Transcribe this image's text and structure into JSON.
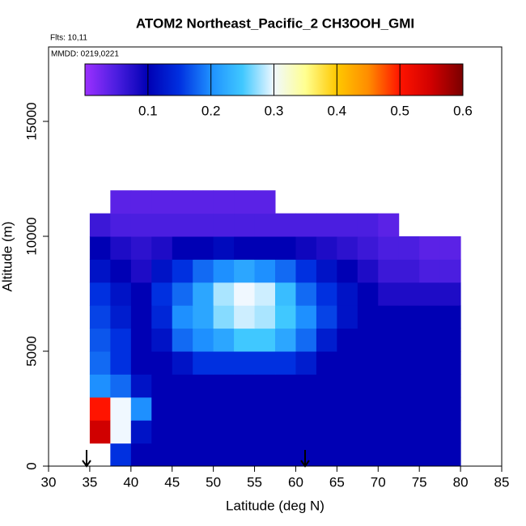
{
  "chart_data": {
    "type": "heatmap",
    "title": "ATOM2 Northeast_Pacific_2 CH3OOH_GMI",
    "annotations": [
      "Flts: 10,11",
      "MMDD: 0219,0221"
    ],
    "x_label": "Latitude (deg N)",
    "y_label": "Altitude (m)",
    "xlim": [
      30,
      85
    ],
    "xticks": [
      30,
      35,
      40,
      45,
      50,
      55,
      60,
      65,
      70,
      75,
      80,
      85
    ],
    "ylim": [
      0,
      18240
    ],
    "yticks": [
      0,
      5000,
      10000,
      15000
    ],
    "x_bins": [
      35,
      37.5,
      40,
      42.5,
      45,
      47.5,
      50,
      52.5,
      55,
      57.5,
      60,
      62.5,
      65,
      67.5,
      70,
      72.5,
      75,
      77.5,
      80
    ],
    "y_bins": [
      0,
      1000,
      2000,
      3000,
      4000,
      5000,
      6000,
      7000,
      8000,
      9000,
      10000,
      11000,
      12000
    ],
    "values": [
      [
        null,
        0.15,
        0.1,
        0.1,
        0.1,
        0.1,
        0.1,
        0.1,
        0.1,
        0.1,
        0.1,
        0.1,
        0.1,
        0.1,
        0.1,
        0.1,
        0.1,
        0.1
      ],
      [
        0.55,
        0.3,
        0.12,
        0.1,
        0.1,
        0.1,
        0.1,
        0.1,
        0.1,
        0.1,
        0.1,
        0.1,
        0.1,
        0.1,
        0.1,
        0.1,
        0.1,
        0.1
      ],
      [
        0.5,
        0.3,
        0.2,
        0.1,
        0.1,
        0.1,
        0.1,
        0.1,
        0.1,
        0.1,
        0.1,
        0.1,
        0.1,
        0.1,
        0.1,
        0.1,
        0.1,
        0.1
      ],
      [
        0.2,
        0.18,
        0.12,
        0.1,
        0.1,
        0.1,
        0.1,
        0.1,
        0.1,
        0.1,
        0.1,
        0.1,
        0.1,
        0.1,
        0.1,
        0.1,
        0.1,
        0.1
      ],
      [
        0.18,
        0.15,
        0.1,
        0.1,
        0.12,
        0.15,
        0.15,
        0.15,
        0.15,
        0.15,
        0.13,
        0.1,
        0.1,
        0.1,
        0.1,
        0.1,
        0.1,
        0.1
      ],
      [
        0.17,
        0.15,
        0.1,
        0.12,
        0.18,
        0.2,
        0.22,
        0.25,
        0.25,
        0.22,
        0.18,
        0.13,
        0.1,
        0.1,
        0.1,
        0.1,
        0.1,
        0.1
      ],
      [
        0.16,
        0.13,
        0.1,
        0.14,
        0.2,
        0.22,
        0.27,
        0.29,
        0.28,
        0.25,
        0.2,
        0.16,
        0.12,
        0.1,
        0.1,
        0.1,
        0.1,
        0.1
      ],
      [
        0.15,
        0.12,
        0.1,
        0.15,
        0.18,
        0.22,
        0.28,
        0.3,
        0.29,
        0.24,
        0.18,
        0.15,
        0.12,
        0.1,
        0.08,
        0.08,
        0.08,
        0.08
      ],
      [
        0.12,
        0.1,
        0.08,
        0.12,
        0.15,
        0.18,
        0.2,
        0.22,
        0.2,
        0.18,
        0.15,
        0.12,
        0.1,
        0.08,
        0.06,
        0.06,
        0.05,
        0.05
      ],
      [
        0.1,
        0.08,
        0.07,
        0.08,
        0.1,
        0.1,
        0.11,
        0.1,
        0.1,
        0.1,
        0.09,
        0.08,
        0.07,
        0.06,
        0.05,
        0.05,
        0.04,
        0.04
      ],
      [
        0.06,
        0.05,
        0.05,
        0.05,
        0.05,
        0.05,
        0.05,
        0.05,
        0.05,
        0.05,
        0.05,
        0.05,
        0.05,
        0.05,
        0.04,
        null,
        null,
        null
      ],
      [
        null,
        0.04,
        0.04,
        0.04,
        0.04,
        0.04,
        0.04,
        0.04,
        0.04,
        null,
        null,
        null,
        null,
        null,
        null,
        null,
        null,
        null
      ]
    ],
    "colorbar": {
      "lim": [
        0,
        0.6
      ],
      "ticks": [
        0.1,
        0.2,
        0.3,
        0.4,
        0.5,
        0.6
      ],
      "colors": [
        "#9b30ff",
        "#4b1ee0",
        "#0000b4",
        "#0030e0",
        "#1e90ff",
        "#40c8ff",
        "#f0f8ff",
        "#ffff90",
        "#ffc800",
        "#ff8c00",
        "#ff1400",
        "#d00000",
        "#7a0000"
      ]
    }
  }
}
